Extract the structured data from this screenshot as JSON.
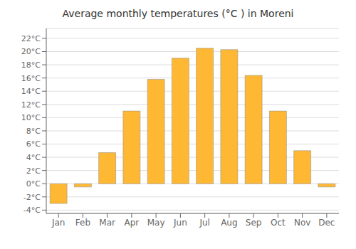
{
  "chart_data": {
    "type": "bar",
    "title": "Average monthly temperatures (°C ) in Moreni",
    "categories": [
      "Jan",
      "Feb",
      "Mar",
      "Apr",
      "May",
      "Jun",
      "Jul",
      "Aug",
      "Sep",
      "Oct",
      "Nov",
      "Dec"
    ],
    "values": [
      -3.0,
      -0.5,
      4.7,
      11.0,
      15.8,
      19.0,
      20.5,
      20.3,
      16.4,
      11.0,
      5.0,
      -0.5
    ],
    "color": "#FFB833",
    "ylim": [
      -4.5,
      23.5
    ],
    "yticks": [
      {
        "value": -4,
        "label": "-4°C"
      },
      {
        "value": -2,
        "label": "-2°C"
      },
      {
        "value": 0,
        "label": "0°C"
      },
      {
        "value": 2,
        "label": "2°C"
      },
      {
        "value": 4,
        "label": "4°C"
      },
      {
        "value": 6,
        "label": "6°C"
      },
      {
        "value": 8,
        "label": "8°C"
      },
      {
        "value": 10,
        "label": "10°C"
      },
      {
        "value": 12,
        "label": "12°C"
      },
      {
        "value": 14,
        "label": "14°C"
      },
      {
        "value": 16,
        "label": "16°C"
      },
      {
        "value": 18,
        "label": "18°C"
      },
      {
        "value": 20,
        "label": "20°C"
      },
      {
        "value": 22,
        "label": "22°C"
      }
    ],
    "grid": true
  }
}
